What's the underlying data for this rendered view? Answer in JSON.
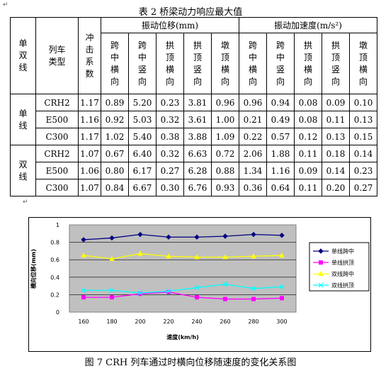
{
  "table": {
    "caption": "表 2  桥梁动力响应最大值",
    "headers": {
      "line_type": "单双线",
      "train_type": "列车类型",
      "impact": "冲击系数",
      "disp_group": "振动位移(mm)",
      "acc_group": "振动加速度(m/s²)",
      "disp_cols": [
        "跨中横向",
        "跨中竖向",
        "拱顶横向",
        "拱顶竖向",
        "墩顶横向"
      ],
      "acc_cols": [
        "跨中横向",
        "跨中竖向",
        "拱顶横向",
        "拱顶竖向",
        "墩顶横向"
      ]
    },
    "groups": [
      {
        "label": "单线",
        "rows": [
          {
            "train": "CRH2",
            "values": [
              "1.17",
              "0.89",
              "5.20",
              "0.23",
              "3.81",
              "0.96",
              "0.96",
              "0.94",
              "0.08",
              "0.09",
              "0.10"
            ]
          },
          {
            "train": "E500",
            "values": [
              "1.16",
              "0.92",
              "5.03",
              "0.32",
              "3.61",
              "1.00",
              "0.21",
              "0.49",
              "0.08",
              "0.11",
              "0.13"
            ]
          },
          {
            "train": "C300",
            "values": [
              "1.17",
              "1.02",
              "5.40",
              "0.38",
              "3.88",
              "1.09",
              "0.22",
              "0.57",
              "0.12",
              "0.13",
              "0.15"
            ]
          }
        ]
      },
      {
        "label": "双线",
        "rows": [
          {
            "train": "CRH2",
            "values": [
              "1.07",
              "0.67",
              "6.40",
              "0.32",
              "6.63",
              "0.72",
              "2.06",
              "1.88",
              "0.11",
              "0.18",
              "0.14"
            ]
          },
          {
            "train": "E500",
            "values": [
              "1.06",
              "0.80",
              "6.17",
              "0.27",
              "6.28",
              "0.88",
              "1.34",
              "1.16",
              "0.09",
              "0.14",
              "0.23"
            ]
          },
          {
            "train": "C300",
            "values": [
              "1.07",
              "0.84",
              "6.67",
              "0.30",
              "6.76",
              "0.93",
              "0.36",
              "0.64",
              "0.11",
              "0.20",
              "0.27"
            ]
          }
        ]
      }
    ]
  },
  "figure": {
    "caption": "图 7    CRH 列车通过时横向位移随速度的变化关系图"
  },
  "chart_data": {
    "type": "line",
    "title": "",
    "xlabel": "速度(km/h)",
    "ylabel": "横向位移(mm)",
    "x": [
      160,
      180,
      200,
      220,
      240,
      260,
      280,
      300
    ],
    "xticks": [
      "160",
      "180",
      "200",
      "220",
      "240",
      "260",
      "280",
      "300"
    ],
    "ylim": [
      0,
      1
    ],
    "yticks": [
      "0",
      "0.2",
      "0.4",
      "0.6",
      "0.8",
      "1"
    ],
    "grid": true,
    "legend_position": "right",
    "series": [
      {
        "name": "单线跨中",
        "color": "#000080",
        "marker": "diamond",
        "values": [
          0.83,
          0.85,
          0.89,
          0.86,
          0.86,
          0.87,
          0.89,
          0.88
        ]
      },
      {
        "name": "单线拱顶",
        "color": "#ff00ff",
        "marker": "square",
        "values": [
          0.17,
          0.17,
          0.21,
          0.23,
          0.17,
          0.15,
          0.15,
          0.16
        ]
      },
      {
        "name": "双线跨中",
        "color": "#ffff00",
        "marker": "triangle",
        "values": [
          0.65,
          0.61,
          0.67,
          0.64,
          0.63,
          0.63,
          0.64,
          0.65
        ]
      },
      {
        "name": "双线拱顶",
        "color": "#00ffff",
        "marker": "x",
        "values": [
          0.25,
          0.25,
          0.22,
          0.24,
          0.28,
          0.32,
          0.27,
          0.29
        ]
      }
    ]
  }
}
